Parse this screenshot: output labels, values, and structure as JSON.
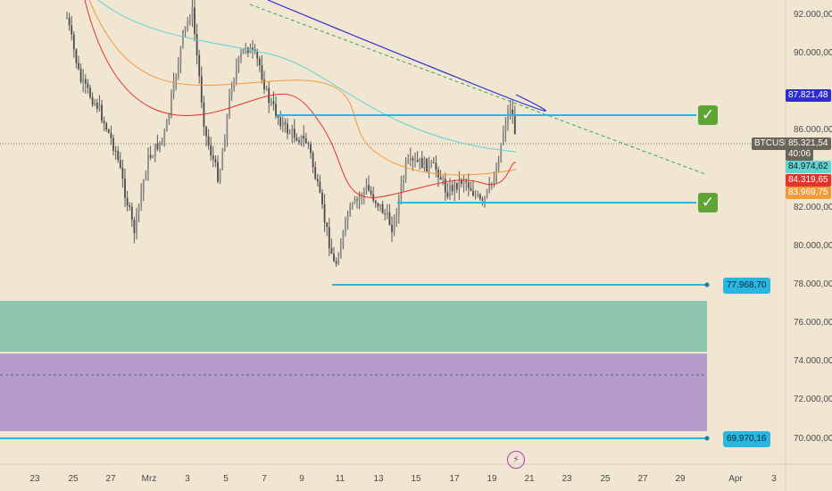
{
  "chart_data": {
    "type": "candlestick",
    "symbol": "BTCUSDT",
    "y_axis_ticks": [
      "92.000,00",
      "90.000,00",
      "86.000,00",
      "82.000,00",
      "80.000,00",
      "78.000,00",
      "76.000,00",
      "74.000,00",
      "72.000,00",
      "70.000,00"
    ],
    "x_axis_ticks": [
      "23",
      "25",
      "27",
      "Mrz",
      "3",
      "5",
      "7",
      "9",
      "11",
      "13",
      "15",
      "17",
      "19",
      "21",
      "23",
      "25",
      "27",
      "29",
      "Apr",
      "3"
    ],
    "price_labels": {
      "ma_blue": "87.821,48",
      "last_price": "85.321,54",
      "countdown": "40:06",
      "ma_cyan": "84.974,62",
      "ma_red": "84.319,65",
      "ma_orange": "83.969,75"
    },
    "horizontal_levels": {
      "resistance_upper": "86.800",
      "support_middle": "82.200",
      "support_low": "77.968,70",
      "support_bottom": "69.970,16"
    },
    "zones": [
      {
        "name": "green-zone",
        "from": 74.8,
        "to": 77.1
      },
      {
        "name": "purple-zone",
        "from": 70.3,
        "to": 74.4
      }
    ],
    "ylim": [
      69.2,
      93.4
    ],
    "colors": {
      "background": "#f0e6d2",
      "candle": "#595959",
      "ma_blue": "#2d2dd0",
      "ma_cyan": "#60d3d2",
      "ma_red": "#e5322b",
      "ma_orange": "#f39a3a",
      "level": "#29b6e0",
      "green_zone": "#8ec5ae",
      "purple_zone": "#b69ccb",
      "trendline": "#3aa84a"
    }
  },
  "icons": {
    "checkmark_upper": "check-icon",
    "checkmark_lower": "check-icon",
    "flash": "lightning-icon"
  },
  "glyphs": {
    "check": "✓",
    "lightning": "⚡"
  }
}
